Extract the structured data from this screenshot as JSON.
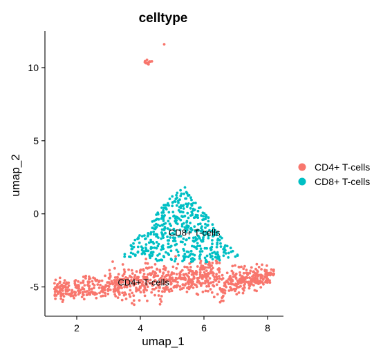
{
  "chart_data": {
    "type": "scatter",
    "title": "celltype",
    "xlabel": "umap_1",
    "ylabel": "umap_2",
    "xlim": [
      1.0,
      8.5
    ],
    "ylim": [
      -7,
      12.5
    ],
    "x_ticks": [
      {
        "value": 2,
        "label": "2"
      },
      {
        "value": 4,
        "label": "4"
      },
      {
        "value": 6,
        "label": "6"
      },
      {
        "value": 8,
        "label": "8"
      }
    ],
    "y_ticks": [
      {
        "value": -5,
        "label": "-5"
      },
      {
        "value": 0,
        "label": "0"
      },
      {
        "value": 5,
        "label": "5"
      },
      {
        "value": 10,
        "label": "10"
      }
    ],
    "grid": false,
    "legend_position": "right",
    "series": [
      {
        "name": "CD4+ T-cells",
        "color": "#F8766D"
      },
      {
        "name": "CD8+ T-cells",
        "color": "#00BFC4"
      }
    ],
    "annotations": [
      {
        "text": "CD8+ T-cells",
        "x": 5.7,
        "y": -1.3
      },
      {
        "text": "CD4+ T-cells",
        "x": 4.1,
        "y": -4.7
      }
    ]
  }
}
